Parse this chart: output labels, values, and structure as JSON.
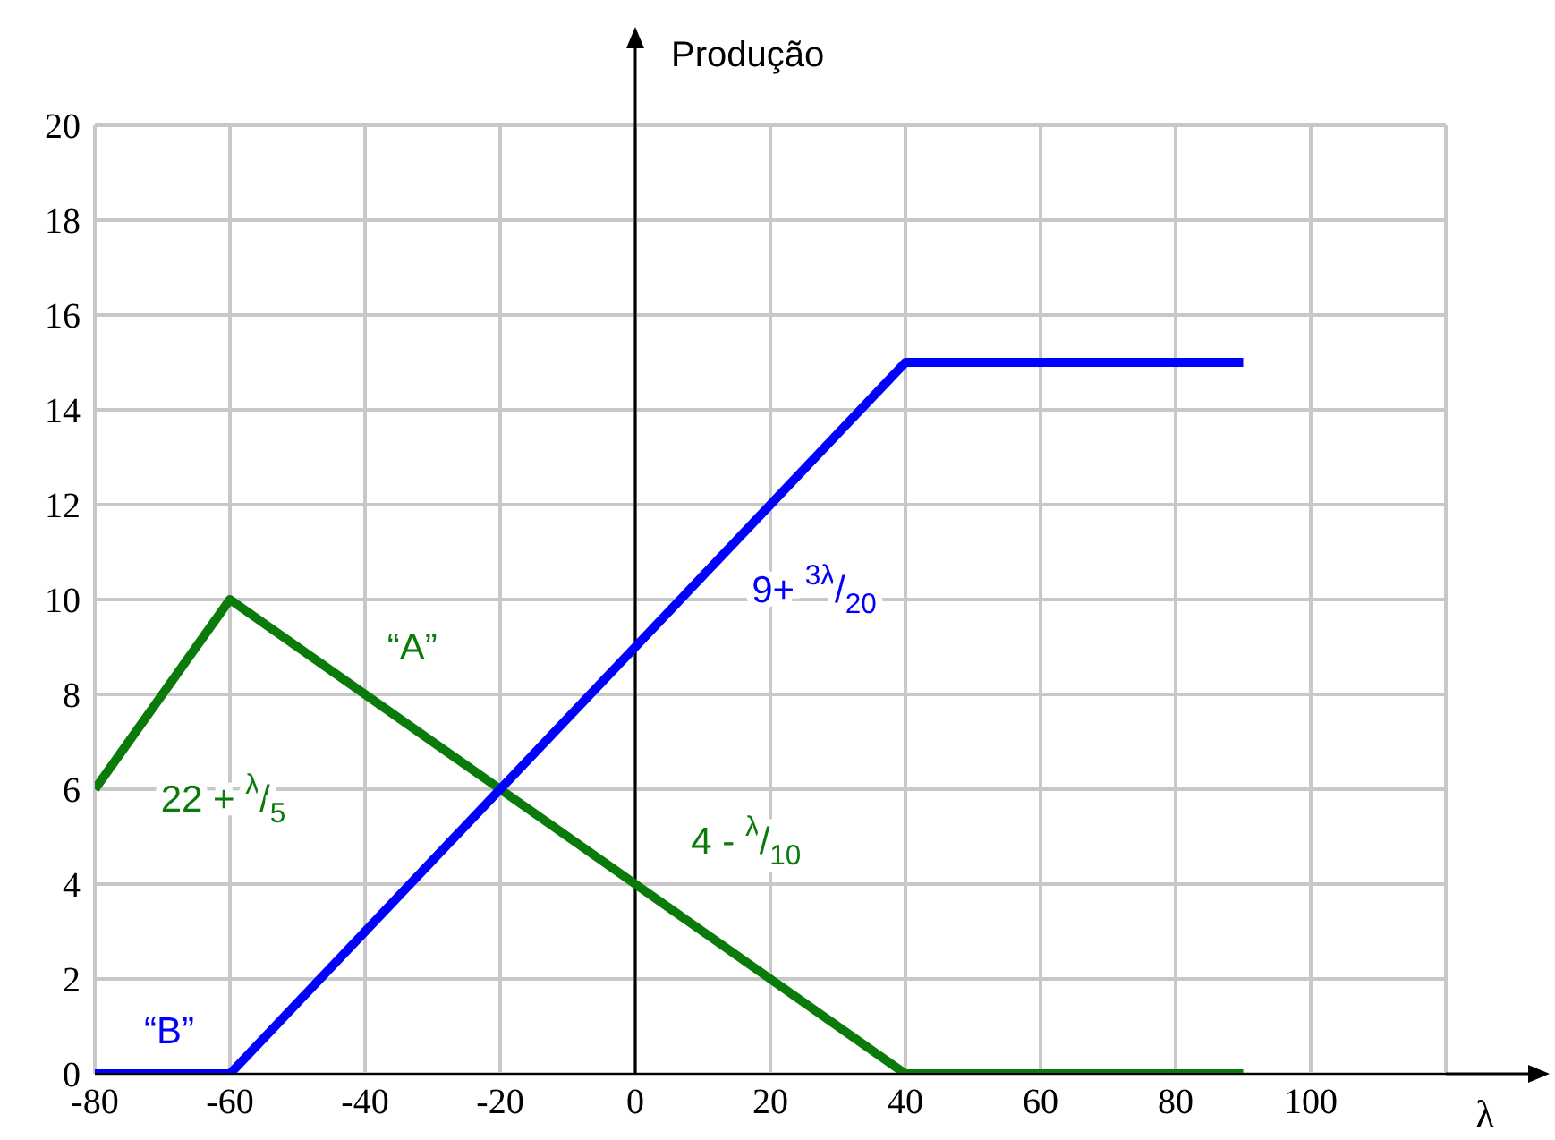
{
  "chart_data": {
    "type": "line",
    "xlabel": "λ",
    "ylabel": "Produção",
    "xlim": [
      -80,
      120
    ],
    "xticks": [
      -80,
      -60,
      -40,
      -20,
      0,
      20,
      40,
      60,
      80,
      100,
      {
        "value": 120,
        "label": null
      }
    ],
    "ylim": [
      0,
      20
    ],
    "yticks": [
      0,
      2,
      4,
      6,
      8,
      10,
      12,
      14,
      16,
      18,
      20
    ],
    "grid": true,
    "marker": "none",
    "line_style": "solid",
    "series": [
      {
        "name": "“A”",
        "color": "#0a7a0a",
        "x": [
          -80,
          -60,
          -20,
          0,
          40,
          90
        ],
        "values": [
          6,
          10,
          6,
          4,
          0,
          0
        ]
      },
      {
        "name": "“B”",
        "color": "#0000ff",
        "x": [
          -80,
          -60,
          40,
          90
        ],
        "values": [
          0,
          0,
          15,
          15
        ]
      }
    ],
    "annotations": [
      "22 + $^{λ}$/$_{5}$",
      "4 - $^{λ}$/$_{10}$",
      "9+ $^{3λ}$/$_{20}$"
    ]
  }
}
